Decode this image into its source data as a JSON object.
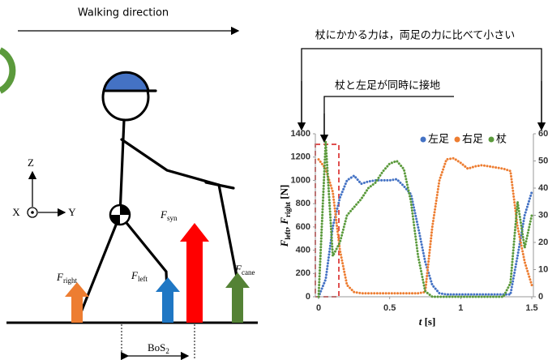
{
  "diagram": {
    "walking_direction": "Walking direction",
    "axes": {
      "z": "Z",
      "x": "X",
      "y": "Y"
    },
    "forces": {
      "right": {
        "symbol": "F",
        "sub": "right"
      },
      "left": {
        "symbol": "F",
        "sub": "left"
      },
      "syn": {
        "symbol": "F",
        "sub": "syn"
      },
      "cane": {
        "symbol": "F",
        "sub": "cane"
      }
    },
    "bos": {
      "text": "BoS",
      "sub": "2"
    }
  },
  "chart_data": {
    "type": "line",
    "annotations": [
      "杖にかかる力は，両足の力に比べて小さい",
      "杖と左足が同時に接地"
    ],
    "xlabel_parts": [
      "t",
      " [s]"
    ],
    "ylabel_parts": [
      "F",
      "left",
      ", ",
      "F",
      "right",
      " [N]"
    ],
    "x": [
      0,
      0.05,
      0.1,
      0.15,
      0.2,
      0.25,
      0.3,
      0.35,
      0.4,
      0.45,
      0.5,
      0.55,
      0.6,
      0.65,
      0.7,
      0.75,
      0.8,
      0.85,
      0.9,
      0.95,
      1,
      1.05,
      1.1,
      1.15,
      1.2,
      1.25,
      1.3,
      1.35,
      1.4,
      1.45,
      1.5
    ],
    "series": [
      {
        "name": "左足",
        "color": "#4472c4",
        "values": [
          0,
          150,
          600,
          850,
          1000,
          1040,
          970,
          990,
          1000,
          1000,
          1000,
          1010,
          950,
          880,
          600,
          300,
          100,
          30,
          20,
          20,
          20,
          20,
          20,
          20,
          20,
          20,
          20,
          20,
          350,
          700,
          900
        ]
      },
      {
        "name": "右足",
        "color": "#ed7d31",
        "values": [
          1180,
          1100,
          900,
          400,
          100,
          40,
          30,
          30,
          30,
          30,
          30,
          30,
          30,
          30,
          30,
          40,
          600,
          1000,
          1180,
          1190,
          1150,
          1100,
          1120,
          1130,
          1120,
          1110,
          1100,
          1080,
          600,
          300,
          100
        ]
      },
      {
        "name": "杖",
        "color": "#5b9a3c",
        "axis": "y2",
        "values": [
          0,
          57,
          15,
          20,
          30,
          33,
          36,
          40,
          42,
          46,
          49,
          50,
          47,
          35,
          15,
          2,
          0,
          0,
          0,
          0,
          0,
          0,
          0,
          0,
          0,
          0,
          0,
          5,
          35,
          18,
          30
        ]
      }
    ],
    "xlim": [
      0,
      1.5
    ],
    "xticks": [
      0,
      0.5,
      1,
      1.5
    ],
    "ylim": [
      0,
      1400
    ],
    "yticks": [
      0,
      200,
      400,
      600,
      800,
      1000,
      1200,
      1400
    ],
    "y2lim": [
      0,
      60
    ],
    "y2ticks": [
      0,
      10,
      20,
      30,
      40,
      50,
      60
    ],
    "legend": "top-right"
  }
}
